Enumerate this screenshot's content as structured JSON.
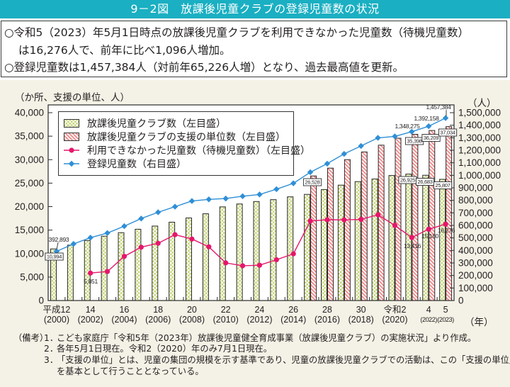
{
  "header": {
    "title": "9－2図　放課後児童クラブの登録児童数の状況",
    "color": "#1aafc2"
  },
  "summary": {
    "lines": [
      "○令和5（2023）年5月1日時点の放課後児童クラブを利用できなかった児童数（待機児童数）",
      "は16,276人で、前年に比べ1,096人増加。",
      "○登録児童数は1,457,384人（対前年65,226人増）となり、過去最高値を更新。"
    ]
  },
  "chart_data": {
    "type": "bar",
    "title": "",
    "ylabel": "（か所、支援の単位、人）",
    "y2label": "（人）",
    "xlabel": "（年）",
    "grid": false,
    "legend_position": "top-left",
    "categories": [
      "2000",
      "2001",
      "2002",
      "2003",
      "2004",
      "2005",
      "2006",
      "2007",
      "2008",
      "2009",
      "2010",
      "2011",
      "2012",
      "2013",
      "2014",
      "2015",
      "2016",
      "2017",
      "2018",
      "2019",
      "2020",
      "2021",
      "2022",
      "2023"
    ],
    "x_tick_labels": [
      {
        "index": 0,
        "era": "平成12",
        "year": "(2000)"
      },
      {
        "index": 2,
        "era": "14",
        "year": "(2002)"
      },
      {
        "index": 4,
        "era": "16",
        "year": "(2004)"
      },
      {
        "index": 6,
        "era": "18",
        "year": "(2006)"
      },
      {
        "index": 8,
        "era": "20",
        "year": "(2008)"
      },
      {
        "index": 10,
        "era": "22",
        "year": "(2010)"
      },
      {
        "index": 12,
        "era": "24",
        "year": "(2012)"
      },
      {
        "index": 14,
        "era": "26",
        "year": "(2014)"
      },
      {
        "index": 16,
        "era": "28",
        "year": "(2016)"
      },
      {
        "index": 18,
        "era": "30",
        "year": "(2018)"
      },
      {
        "index": 20,
        "era": "令和2",
        "year": "(2020)"
      },
      {
        "index": 22,
        "era": "4",
        "year": "(2022)"
      },
      {
        "index": 23,
        "era": "5",
        "year": "(2023)"
      }
    ],
    "ylim": [
      0,
      40000
    ],
    "y_ticks": [
      0,
      5000,
      10000,
      15000,
      20000,
      25000,
      30000,
      35000,
      40000
    ],
    "y_tick_labels": [
      "0",
      "5,000",
      "10,000",
      "15,000",
      "20,000",
      "25,000",
      "30,000",
      "35,000",
      "40,000"
    ],
    "y2lim": [
      0,
      1500000
    ],
    "y2_ticks": [
      0,
      100000,
      200000,
      300000,
      400000,
      500000,
      600000,
      700000,
      800000,
      900000,
      1000000,
      1100000,
      1200000,
      1300000,
      1400000,
      1500000
    ],
    "y2_tick_labels": [
      "0",
      "100,000",
      "200,000",
      "300,000",
      "400,000",
      "500,000",
      "600,000",
      "700,000",
      "800,000",
      "900,000",
      "1,000,000",
      "1,100,000",
      "1,200,000",
      "1,300,000",
      "1,400,000",
      "1,500,000"
    ],
    "series": [
      {
        "name": "放課後児童クラブ数（左目盛）",
        "type": "bar",
        "axis": "left",
        "pattern": "checker",
        "color": "#c5d67a",
        "values": [
          10994,
          11803,
          12782,
          13698,
          14457,
          15184,
          15857,
          16685,
          17583,
          18479,
          19946,
          20561,
          21085,
          21482,
          22084,
          22608,
          23619,
          24573,
          25328,
          25881,
          26625,
          26925,
          26683,
          25807
        ]
      },
      {
        "name": "放課後児童クラブの支援の単位数（左目盛）",
        "type": "bar",
        "axis": "left",
        "pattern": "stripe",
        "color": "#ef8b8b",
        "values": [
          null,
          null,
          null,
          null,
          null,
          null,
          null,
          null,
          null,
          null,
          null,
          null,
          null,
          null,
          null,
          26528,
          28198,
          30010,
          31643,
          33090,
          34573,
          35398,
          36209,
          37034
        ]
      },
      {
        "name": "利用できなかった児童数（待機児童数）（左目盛）",
        "type": "line",
        "axis": "left",
        "marker": "circle",
        "color": "#e5176c",
        "values": [
          null,
          null,
          5851,
          6180,
          9400,
          11360,
          12189,
          14029,
          13096,
          11438,
          8021,
          7408,
          7521,
          8689,
          9945,
          16941,
          17203,
          17170,
          17279,
          18261,
          15995,
          13416,
          15180,
          16276
        ]
      },
      {
        "name": "登録児童数（右目盛）",
        "type": "line",
        "axis": "right",
        "marker": "diamond",
        "color": "#2f8fd6",
        "values": [
          392893,
          452135,
          502041,
          538925,
          593764,
          654823,
          704982,
          749478,
          794922,
          807857,
          814439,
          833038,
          846967,
          889205,
          936452,
          1024635,
          1093085,
          1171162,
          1234366,
          1299307,
          1311008,
          1348275,
          1392158,
          1457384
        ]
      }
    ],
    "data_labels": [
      {
        "series": 3,
        "index": 0,
        "text": "392,893"
      },
      {
        "series": 0,
        "index": 0,
        "text": "10,994"
      },
      {
        "series": 2,
        "index": 2,
        "text": "5,851"
      },
      {
        "series": 1,
        "index": 15,
        "text": "26,528"
      },
      {
        "series": 0,
        "index": 21,
        "text": "26,925"
      },
      {
        "series": 0,
        "index": 22,
        "text": "26,683"
      },
      {
        "series": 0,
        "index": 23,
        "text": "25,807"
      },
      {
        "series": 1,
        "index": 21,
        "text": "35,398"
      },
      {
        "series": 1,
        "index": 22,
        "text": "36,209"
      },
      {
        "series": 1,
        "index": 23,
        "text": "37,034"
      },
      {
        "series": 3,
        "index": 21,
        "text": "1,348,275"
      },
      {
        "series": 3,
        "index": 22,
        "text": "1,392,158"
      },
      {
        "series": 3,
        "index": 23,
        "text": "1,457,384"
      },
      {
        "series": 2,
        "index": 21,
        "text": "13,416"
      },
      {
        "series": 2,
        "index": 22,
        "text": "15,180"
      },
      {
        "series": 2,
        "index": 23,
        "text": "16,276"
      }
    ]
  },
  "notes": {
    "label": "（備考）",
    "items": [
      {
        "num": "1．",
        "lines": [
          "こども家庭庁「令和5年（2023年）放課後児童健全育成事業（放課後児童クラブ）の実施状況」より作成。"
        ]
      },
      {
        "num": "2．",
        "lines": [
          "各年5月1日現在。令和2（2020）年のみ7月1日現在。"
        ]
      },
      {
        "num": "3．",
        "lines": [
          "「支援の単位」とは、児童の集団の規模を示す基準であり、児童の放課後児童クラブでの活動は、この「支援の単位」",
          "を基本として行うこととなっている。"
        ]
      }
    ]
  }
}
